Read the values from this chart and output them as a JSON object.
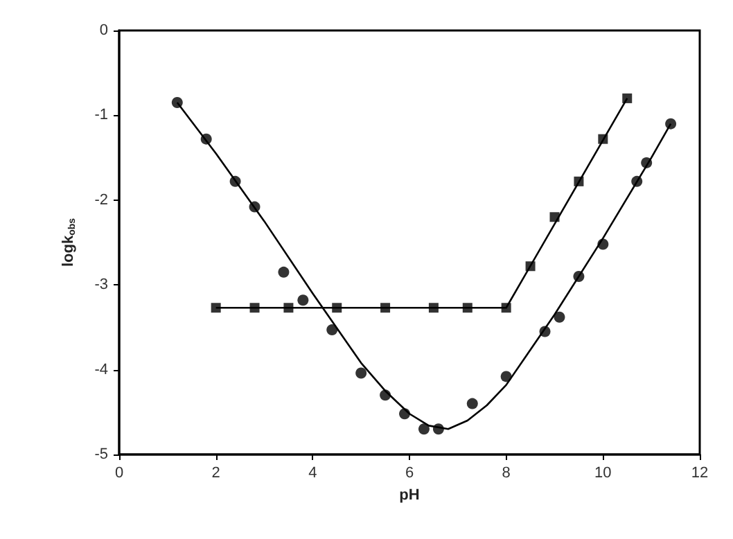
{
  "chart_data": {
    "type": "scatter",
    "xlabel": "pH",
    "ylabel": "logk$_{obs}$",
    "xlim": [
      0,
      12
    ],
    "xticks": [
      0,
      2,
      4,
      6,
      8,
      10,
      12
    ],
    "ylim": [
      -5,
      0
    ],
    "yticks": [
      -5,
      -4,
      -3,
      -2,
      -1,
      0
    ],
    "series": [
      {
        "marker": "circle",
        "color": "#000000",
        "x": [
          1.2,
          1.8,
          2.4,
          2.8,
          3.4,
          3.8,
          4.4,
          5.0,
          5.5,
          5.9,
          6.3,
          6.6,
          7.3,
          8.0,
          8.8,
          9.1,
          9.5,
          10.0,
          10.7,
          10.9,
          11.4
        ],
        "values": [
          -0.85,
          -1.28,
          -1.78,
          -2.08,
          -2.85,
          -3.18,
          -3.53,
          -4.04,
          -4.3,
          -4.52,
          -4.7,
          -4.7,
          -4.4,
          -4.08,
          -3.55,
          -3.38,
          -2.9,
          -2.52,
          -1.78,
          -1.56,
          -1.1
        ]
      },
      {
        "marker": "square",
        "color": "#000000",
        "x": [
          2,
          2.8,
          3.5,
          4.5,
          5.5,
          6.5,
          7.2,
          8.0,
          8.5,
          9.0,
          9.5,
          10.0,
          10.5
        ],
        "values": [
          -3.27,
          -3.27,
          -3.27,
          -3.27,
          -3.27,
          -3.27,
          -3.27,
          -3.27,
          -2.78,
          -2.2,
          -1.78,
          -1.28,
          -0.8
        ]
      },
      {
        "type": "line",
        "marker": "none",
        "color": "#000000",
        "x": [
          1.2,
          2,
          3,
          4,
          5,
          5.5,
          6,
          6.4,
          6.8,
          7.2,
          7.6,
          8,
          9,
          10,
          11,
          11.4
        ],
        "values": [
          -0.85,
          -1.45,
          -2.25,
          -3.1,
          -3.92,
          -4.25,
          -4.52,
          -4.66,
          -4.7,
          -4.6,
          -4.42,
          -4.18,
          -3.35,
          -2.45,
          -1.5,
          -1.1
        ]
      },
      {
        "type": "line",
        "marker": "none",
        "color": "#000000",
        "x": [
          2,
          8,
          10.5
        ],
        "values": [
          -3.27,
          -3.27,
          -0.8
        ]
      }
    ]
  }
}
